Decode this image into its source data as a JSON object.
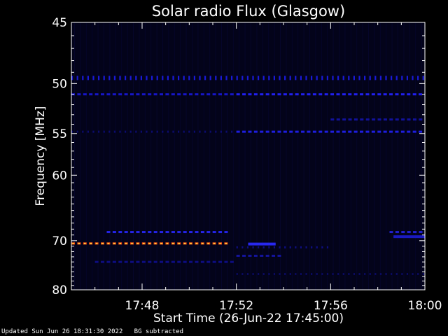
{
  "chart_data": {
    "type": "heatmap",
    "title": "Solar radio Flux (Glasgow)",
    "xlabel": "Start Time (26-Jun-22 17:45:00)",
    "ylabel": "Frequency [MHz]",
    "xlim": [
      "17:45",
      "18:00"
    ],
    "ylim": [
      45,
      80
    ],
    "x_ticks": [
      "17:48",
      "17:52",
      "17:56",
      "18:00"
    ],
    "y_ticks": [
      45,
      50,
      55,
      60,
      70,
      80
    ],
    "background_color": "#03031a",
    "emission_lanes": [
      {
        "freq_mhz": 49.5,
        "start": "17:45:00",
        "end": "18:00:00",
        "style": "dotted",
        "color": "#1a1ad8",
        "intensity": 0.6
      },
      {
        "freq_mhz": 51.0,
        "start": "17:45:00",
        "end": "17:52:00",
        "style": "dashed",
        "color": "#1616c8",
        "intensity": 0.55
      },
      {
        "freq_mhz": 51.0,
        "start": "17:52:00",
        "end": "18:00:00",
        "style": "dashed",
        "color": "#2020f0",
        "intensity": 0.75
      },
      {
        "freq_mhz": 54.8,
        "start": "17:45:00",
        "end": "17:52:00",
        "style": "dotted",
        "color": "#0b0b6e",
        "intensity": 0.3
      },
      {
        "freq_mhz": 54.8,
        "start": "17:52:00",
        "end": "18:00:00",
        "style": "dashed",
        "color": "#1e1ee0",
        "intensity": 0.7
      },
      {
        "freq_mhz": 53.5,
        "start": "17:56:00",
        "end": "18:00:00",
        "style": "dashed",
        "color": "#12129a",
        "intensity": 0.45
      },
      {
        "freq_mhz": 68.5,
        "start": "17:46:30",
        "end": "17:51:50",
        "style": "dashed",
        "color": "#2424e6",
        "intensity": 0.7
      },
      {
        "freq_mhz": 68.5,
        "start": "17:58:30",
        "end": "18:00:00",
        "style": "dashed",
        "color": "#2020d0",
        "intensity": 0.65
      },
      {
        "freq_mhz": 69.3,
        "start": "17:58:40",
        "end": "18:00:00",
        "style": "solid",
        "color": "#1a1ac0",
        "intensity": 0.6
      },
      {
        "freq_mhz": 70.5,
        "start": "17:45:00",
        "end": "17:51:50",
        "style": "dashed",
        "color": "#ff4a10",
        "intensity": 1.0
      },
      {
        "freq_mhz": 70.6,
        "start": "17:52:30",
        "end": "17:53:40",
        "style": "solid",
        "color": "#2828f0",
        "intensity": 0.8
      },
      {
        "freq_mhz": 71.2,
        "start": "17:52:00",
        "end": "17:56:00",
        "style": "dotted",
        "color": "#0e0e80",
        "intensity": 0.35
      },
      {
        "freq_mhz": 72.8,
        "start": "17:52:00",
        "end": "17:54:00",
        "style": "dashed",
        "color": "#14149c",
        "intensity": 0.45
      },
      {
        "freq_mhz": 74.0,
        "start": "17:46:00",
        "end": "17:52:00",
        "style": "dashed",
        "color": "#0d0d80",
        "intensity": 0.35
      },
      {
        "freq_mhz": 76.5,
        "start": "17:52:00",
        "end": "18:00:00",
        "style": "dotted",
        "color": "#0a0a60",
        "intensity": 0.25
      }
    ]
  },
  "footer": {
    "updated": "Updated Sun Jun 26 18:31:30 2022",
    "bg_note": "BG subtracted"
  }
}
